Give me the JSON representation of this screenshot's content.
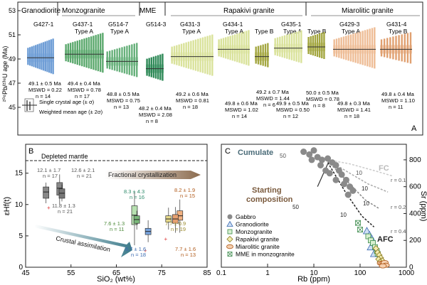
{
  "panelA": {
    "letter": "A",
    "ylabel": "²⁰⁶Pb/²³⁸U age (Ma)",
    "yticks": [
      "53",
      "51",
      "49",
      "47",
      "45"
    ],
    "legend_single": "Single crystal age (± σ)",
    "legend_weighted": "Weighted mean age (± 2σ)",
    "group_headers": [
      "Granodiorite",
      "Monzogranite",
      "MME",
      "Rapakivi granite",
      "Miarolitic granite"
    ],
    "samples": [
      {
        "name": "G427-1",
        "type": "",
        "age": "49.1 ± 0.5 Ma",
        "mswd": "MSWD = 0.22",
        "n": "n = 14",
        "color": "#6f9ed6",
        "wm": 49.1
      },
      {
        "name": "G437-1",
        "type": "Type A",
        "age": "49.4 ± 0.4 Ma",
        "mswd": "MSWD = 0.78",
        "n": "n = 17",
        "color": "#5aa86c",
        "wm": 49.4
      },
      {
        "name": "G514-7",
        "type": "Type A",
        "age": "48.8 ± 0.5 Ma",
        "mswd": "MSWD = 0.75",
        "n": "n = 13",
        "color": "#66b07a",
        "wm": 48.8
      },
      {
        "name": "G514-3",
        "type": "",
        "age": "48.2 ± 0.4 Ma",
        "mswd": "MSWD = 2.08",
        "n": "n = 8",
        "color": "#2f8a58",
        "wm": 48.2
      },
      {
        "name": "G431-3",
        "type": "Type A",
        "age": "49.2 ± 0.6 Ma",
        "mswd": "MSWD = 0.81",
        "n": "n = 18",
        "color": "#d9e29a",
        "wm": 49.2
      },
      {
        "name": "G434-1",
        "type": "Type A",
        "age": "49.8 ± 0.6 Ma",
        "mswd": "MSWD = 1.02",
        "n": "n = 14",
        "color": "#d9e29a",
        "wm": 49.8
      },
      {
        "name": "",
        "type": "Type B",
        "age": "49.2 ± 0.7 Ma",
        "mswd": "MSWD = 1.44",
        "n": "n = 6",
        "color": "#a3a640",
        "wm": 49.2
      },
      {
        "name": "G435-1",
        "type": "Type A",
        "age": "49.9 ± 0.5 Ma",
        "mswd": "MSWD = 0.50",
        "n": "n = 12",
        "color": "#d9e29a",
        "wm": 49.9
      },
      {
        "name": "",
        "type": "Type B",
        "age": "50.0 ± 0.5 Ma",
        "mswd": "MSWD = 0.78",
        "n": "n = 8",
        "color": "#a3a640",
        "wm": 50.0
      },
      {
        "name": "G429-3",
        "type": "Type A",
        "age": "49.8 ± 0.3 Ma",
        "mswd": "MSWD = 1.41",
        "n": "n = 18",
        "color": "#eebc95",
        "wm": 49.8
      },
      {
        "name": "G431-4",
        "type": "Type B",
        "age": "49.8 ± 0.4 Ma",
        "mswd": "MSWD = 1.10",
        "n": "n = 11",
        "color": "#e0a070",
        "wm": 49.8
      }
    ]
  },
  "panelB": {
    "letter": "B",
    "xlabel": "SiO₂ (wt%)",
    "ylabel": "εHf(t)",
    "xticks": [
      "45",
      "55",
      "65",
      "75",
      "85"
    ],
    "yticks": [
      "15",
      "10",
      "5",
      "0"
    ],
    "depleted_mantle": "Depleted mantle",
    "fractional": "Fractional crystallization",
    "crustal": "Crustal assimilation",
    "labels": [
      {
        "t": "12.1 ± 1.7",
        "n": "n = 17"
      },
      {
        "t": "12.6 ± 2.1",
        "n": "n = 21"
      },
      {
        "t": "11.8 ± 1.3",
        "n": "n = 21"
      },
      {
        "t": "8.3 ± 4.3",
        "n": "n = 16"
      },
      {
        "t": "7.6 ± 1.3",
        "n": "n = 11"
      },
      {
        "t": "5.7 ± 1.6",
        "n": "n = 18"
      },
      {
        "t": "7.7 ± 0.9",
        "n": "n = 19"
      },
      {
        "t": "8.2 ± 1.9",
        "n": "n = 15"
      },
      {
        "t": "7.7 ± 1.6",
        "n": "n = 13"
      }
    ]
  },
  "panelC": {
    "letter": "C",
    "xlabel": "Rb (ppm)",
    "ylabel": "Sr (ppm)",
    "xticks": [
      "0.1",
      "1",
      "10",
      "100",
      "1000"
    ],
    "yticks": [
      "800",
      "600",
      "400",
      "200",
      "0"
    ],
    "cumulate": "Cumulate",
    "starting": "Starting composition",
    "fc": "FC",
    "afc": "AFC",
    "r_labels": [
      "r = 0.1",
      "r = 0.2",
      "r = 0.4"
    ],
    "curve_labels": [
      "50",
      "10",
      "50",
      "10",
      "10",
      "10"
    ],
    "legend": [
      "Gabbro",
      "Granodiorite",
      "Monzogranite",
      "Rapakivi granite",
      "Miarolitic granite",
      "MME in monzogranite"
    ]
  }
}
